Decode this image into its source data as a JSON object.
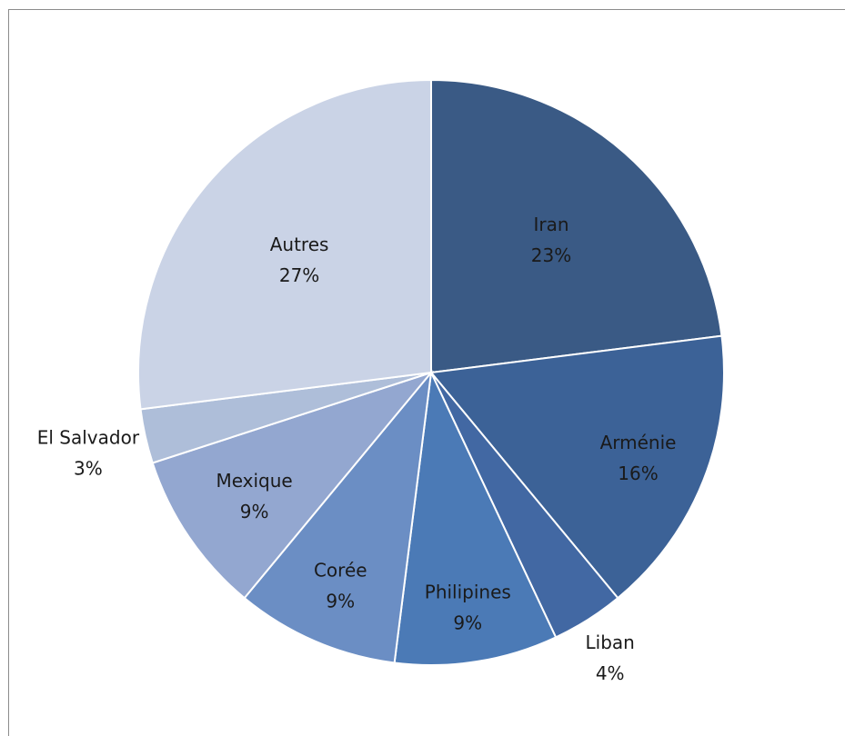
{
  "chart_data": {
    "type": "pie",
    "title": "",
    "start_angle_deg": 0,
    "direction": "clockwise",
    "slices": [
      {
        "label": "Iran",
        "value": 23,
        "value_label": "23%",
        "color": "#3a5a85"
      },
      {
        "label": "Arménie",
        "value": 16,
        "value_label": "16%",
        "color": "#3c6297"
      },
      {
        "label": "Liban",
        "value": 4,
        "value_label": "4%",
        "color": "#4268a3"
      },
      {
        "label": "Philipines",
        "value": 9,
        "value_label": "9%",
        "color": "#4b7ab6"
      },
      {
        "label": "Corée",
        "value": 9,
        "value_label": "9%",
        "color": "#6b8ec4"
      },
      {
        "label": "Mexique",
        "value": 9,
        "value_label": "9%",
        "color": "#93a7d0"
      },
      {
        "label": "El Salvador",
        "value": 3,
        "value_label": "3%",
        "color": "#aebed9"
      },
      {
        "label": "Autres",
        "value": 27,
        "value_label": "27%",
        "color": "#cad3e6"
      }
    ],
    "legend": "none",
    "labels": "on-slices"
  }
}
